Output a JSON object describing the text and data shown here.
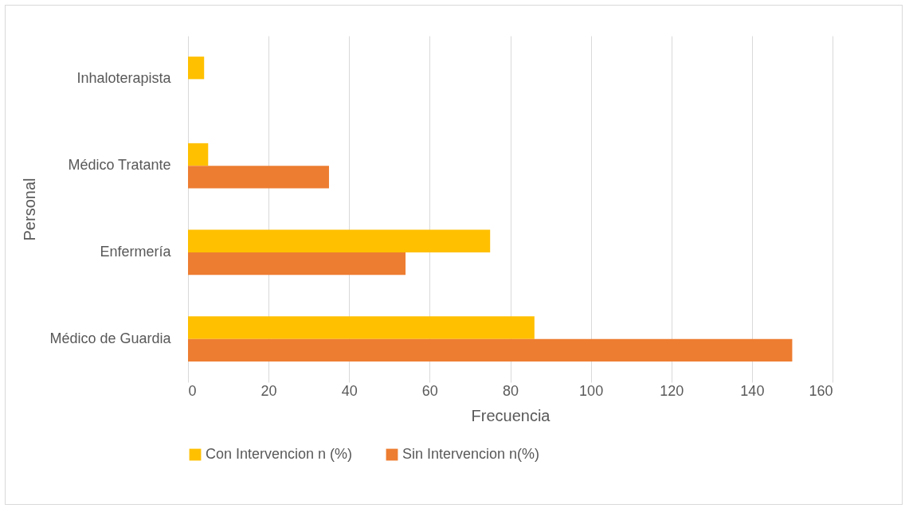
{
  "chart_data": {
    "type": "bar",
    "orientation": "horizontal",
    "xlabel": "Frecuencia",
    "ylabel": "Personal",
    "categories": [
      "Inhaloterapista",
      "Médico Tratante",
      "Enfermería",
      "Médico de Guardia"
    ],
    "series": [
      {
        "name": "Con Intervencion n (%)",
        "color": "#ffc000",
        "values": [
          4,
          5,
          75,
          86
        ]
      },
      {
        "name": "Sin Intervencion n(%)",
        "color": "#ed7d31",
        "values": [
          0,
          35,
          54,
          150
        ]
      }
    ],
    "xlim": [
      0,
      160
    ],
    "xticks": [
      0,
      20,
      40,
      60,
      80,
      100,
      120,
      140,
      160
    ],
    "grid": "x",
    "legend": "bottom"
  }
}
